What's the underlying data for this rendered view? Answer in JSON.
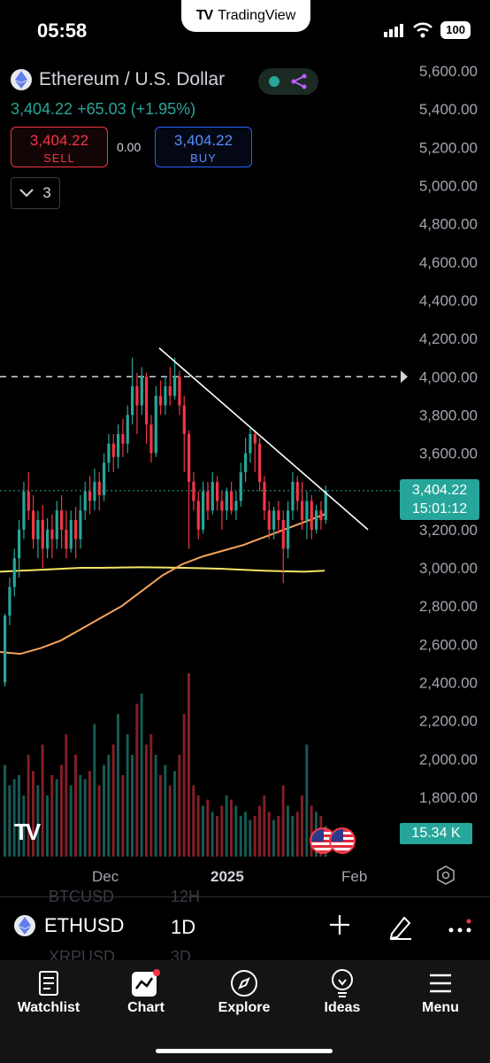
{
  "status": {
    "time": "05:58",
    "app_name": "TradingView",
    "battery": "100"
  },
  "header": {
    "symbol_title": "Ethereum / U.S. Dollar",
    "price_change": "3,404.22 +65.03 (+1.95%)",
    "sell_price": "3,404.22",
    "sell_label": "SELL",
    "spread": "0.00",
    "buy_price": "3,404.22",
    "buy_label": "BUY",
    "indicator_count": "3"
  },
  "price_tag": {
    "price": "3,404.22",
    "countdown": "15:01:12"
  },
  "volume_tag": "15.34 K",
  "x_axis": {
    "labels": [
      "Dec",
      "2025",
      "Feb"
    ]
  },
  "symbol_bar": {
    "ticker": "ETHUSD",
    "interval": "1D",
    "ghost_items": [
      "BTCUSD",
      "12H",
      "XRPUSD",
      "3D"
    ]
  },
  "tabs": [
    {
      "label": "Watchlist",
      "icon": "document-icon"
    },
    {
      "label": "Chart",
      "icon": "chart-icon"
    },
    {
      "label": "Explore",
      "icon": "compass-icon"
    },
    {
      "label": "Ideas",
      "icon": "lightbulb-icon"
    },
    {
      "label": "Menu",
      "icon": "hamburger-icon"
    }
  ],
  "colors": {
    "up": "#26a69a",
    "down": "#f23645",
    "ma_short": "#f7a35c",
    "ma_long": "#f5e663",
    "buy": "#2962ff"
  },
  "chart_data": {
    "type": "candlestick",
    "y_ticks": [
      "5,600.00",
      "5,400.00",
      "5,200.00",
      "5,000.00",
      "4,800.00",
      "4,600.00",
      "4,400.00",
      "4,200.00",
      "4,000.00",
      "3,800.00",
      "3,600.00",
      "3,400.00",
      "3,200.00",
      "3,000.00",
      "2,800.00",
      "2,600.00",
      "2,400.00",
      "2,200.00",
      "2,000.00",
      "1,800.00"
    ],
    "ylim": [
      1650,
      5700
    ],
    "current_price": 3404.22,
    "horizontal_level": 4000,
    "trendline": {
      "from": [
        0.325,
        4150
      ],
      "to": [
        0.75,
        3200
      ]
    },
    "candles": [
      [
        2400,
        2750,
        2380,
        2760
      ],
      [
        2750,
        2900,
        2700,
        2950
      ],
      [
        2900,
        3050,
        2850,
        3100
      ],
      [
        3050,
        3200,
        2950,
        3250
      ],
      [
        3200,
        3400,
        3150,
        3450
      ],
      [
        3400,
        3300,
        3250,
        3500
      ],
      [
        3300,
        3150,
        3100,
        3380
      ],
      [
        3150,
        3250,
        3050,
        3300
      ],
      [
        3250,
        3100,
        3000,
        3330
      ],
      [
        3100,
        3200,
        3050,
        3260
      ],
      [
        3200,
        3150,
        3050,
        3280
      ],
      [
        3150,
        3300,
        3100,
        3350
      ],
      [
        3300,
        3200,
        3100,
        3380
      ],
      [
        3200,
        3100,
        3050,
        3300
      ],
      [
        3100,
        3250,
        3080,
        3300
      ],
      [
        3250,
        3150,
        3050,
        3320
      ],
      [
        3150,
        3300,
        3100,
        3380
      ],
      [
        3300,
        3400,
        3250,
        3450
      ],
      [
        3400,
        3350,
        3280,
        3480
      ],
      [
        3350,
        3450,
        3300,
        3520
      ],
      [
        3450,
        3380,
        3300,
        3500
      ],
      [
        3380,
        3550,
        3350,
        3600
      ],
      [
        3550,
        3650,
        3500,
        3700
      ],
      [
        3650,
        3580,
        3500,
        3700
      ],
      [
        3580,
        3700,
        3520,
        3750
      ],
      [
        3700,
        3650,
        3580,
        3780
      ],
      [
        3650,
        3800,
        3600,
        3850
      ],
      [
        3800,
        3950,
        3750,
        4100
      ],
      [
        3950,
        3850,
        3700,
        4020
      ],
      [
        3850,
        4000,
        3800,
        4050
      ],
      [
        4000,
        3750,
        3650,
        4020
      ],
      [
        3750,
        3600,
        3550,
        3800
      ],
      [
        3600,
        3900,
        3580,
        3950
      ],
      [
        3900,
        3850,
        3800,
        3980
      ],
      [
        3850,
        3950,
        3800,
        4000
      ],
      [
        3950,
        3900,
        3850,
        4050
      ],
      [
        3900,
        4000,
        3880,
        4100
      ],
      [
        4000,
        3850,
        3800,
        4030
      ],
      [
        3850,
        3700,
        3500,
        3900
      ],
      [
        3700,
        3450,
        3100,
        3720
      ],
      [
        3450,
        3350,
        3300,
        3500
      ],
      [
        3350,
        3200,
        3150,
        3400
      ],
      [
        3200,
        3400,
        3180,
        3450
      ],
      [
        3400,
        3300,
        3250,
        3450
      ],
      [
        3300,
        3450,
        3280,
        3500
      ],
      [
        3450,
        3350,
        3300,
        3480
      ],
      [
        3350,
        3300,
        3200,
        3400
      ],
      [
        3300,
        3400,
        3250,
        3420
      ],
      [
        3400,
        3300,
        3280,
        3450
      ],
      [
        3300,
        3350,
        3250,
        3400
      ],
      [
        3350,
        3500,
        3320,
        3550
      ],
      [
        3500,
        3600,
        3450,
        3680
      ],
      [
        3600,
        3700,
        3550,
        3730
      ],
      [
        3700,
        3650,
        3500,
        3720
      ],
      [
        3650,
        3450,
        3400,
        3680
      ],
      [
        3450,
        3300,
        3250,
        3480
      ],
      [
        3300,
        3200,
        3150,
        3350
      ],
      [
        3200,
        3300,
        3150,
        3320
      ],
      [
        3300,
        3250,
        3180,
        3350
      ],
      [
        3250,
        3100,
        2920,
        3300
      ],
      [
        3100,
        3300,
        3050,
        3350
      ],
      [
        3300,
        3450,
        3250,
        3500
      ],
      [
        3450,
        3350,
        3300,
        3480
      ],
      [
        3350,
        3250,
        3200,
        3450
      ],
      [
        3250,
        3350,
        3150,
        3400
      ],
      [
        3350,
        3200,
        3150,
        3380
      ],
      [
        3200,
        3300,
        3180,
        3330
      ],
      [
        3300,
        3250,
        3200,
        3350
      ],
      [
        3250,
        3404,
        3230,
        3430
      ]
    ],
    "volumes": [
      0.45,
      0.35,
      0.38,
      0.4,
      0.3,
      0.5,
      0.42,
      0.35,
      0.55,
      0.3,
      0.4,
      0.38,
      0.45,
      0.6,
      0.35,
      0.5,
      0.4,
      0.38,
      0.42,
      0.65,
      0.35,
      0.45,
      0.5,
      0.55,
      0.7,
      0.4,
      0.6,
      0.5,
      0.75,
      0.8,
      0.55,
      0.6,
      0.5,
      0.4,
      0.45,
      0.35,
      0.42,
      0.5,
      0.7,
      0.9,
      0.35,
      0.3,
      0.25,
      0.28,
      0.22,
      0.2,
      0.25,
      0.3,
      0.28,
      0.25,
      0.2,
      0.22,
      0.18,
      0.2,
      0.25,
      0.3,
      0.22,
      0.18,
      0.2,
      0.35,
      0.25,
      0.2,
      0.22,
      0.3,
      0.55,
      0.25,
      0.22,
      0.2,
      0.15
    ]
  }
}
